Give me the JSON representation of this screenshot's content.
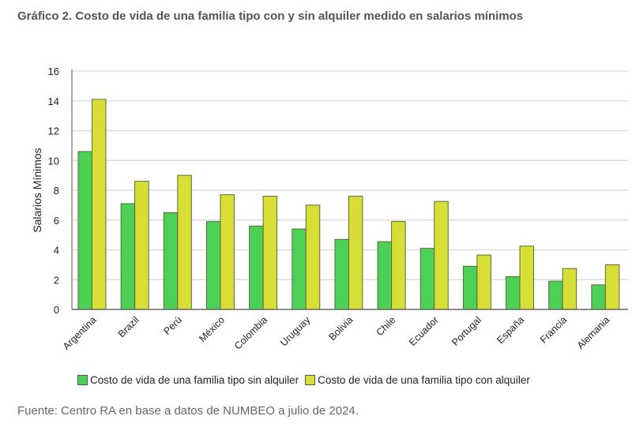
{
  "chart_data": {
    "type": "bar",
    "title": "Gráfico 2. Costo de vida de una familia tipo con y sin alquiler medido en salarios mínimos",
    "ylabel": "Salarios Mínimos",
    "xlabel": "",
    "ylim": [
      0,
      16
    ],
    "yticks": [
      0,
      2,
      4,
      6,
      8,
      10,
      12,
      14,
      16
    ],
    "grid": true,
    "legend_position": "bottom",
    "categories": [
      "Argentina",
      "Brazil",
      "Perú",
      "México",
      "Colombia",
      "Uruguay",
      "Bolivia",
      "Chile",
      "Ecuador",
      "Portugal",
      "España",
      "Francia",
      "Alemania"
    ],
    "series": [
      {
        "name": "Costo de vida de una familia tipo sin alquiler",
        "color": "#4cd156",
        "values": [
          10.6,
          7.1,
          6.5,
          5.9,
          5.6,
          5.4,
          4.7,
          4.55,
          4.1,
          2.9,
          2.2,
          1.9,
          1.65
        ]
      },
      {
        "name": "Costo de vida de una familia tipo con alquiler",
        "color": "#d7df36",
        "values": [
          14.1,
          8.6,
          9.0,
          7.7,
          7.6,
          7.0,
          7.6,
          5.9,
          7.25,
          3.65,
          4.25,
          2.75,
          3.0
        ]
      }
    ],
    "source": "Fuente: Centro RA en base a datos de NUMBEO a julio de 2024."
  }
}
